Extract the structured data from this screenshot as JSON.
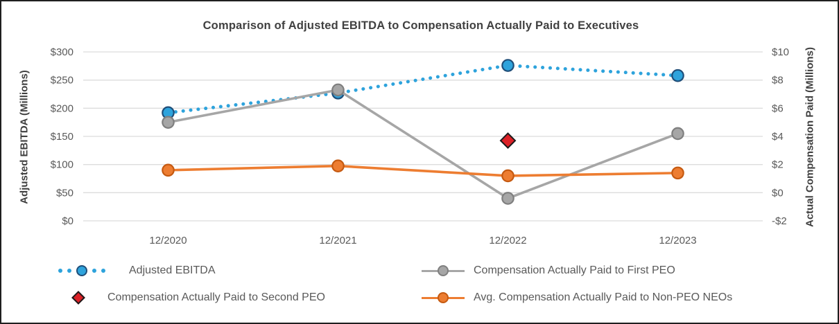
{
  "window": {
    "background": "#ffffff",
    "border_color": "#1f1f1f"
  },
  "chart_data": {
    "type": "line",
    "title": "Comparison of Adjusted EBITDA to Compensation Actually Paid to Executives",
    "categories": [
      "12/2020",
      "12/2021",
      "12/2022",
      "12/2023"
    ],
    "left_axis": {
      "title": "Adjusted EBITDA (Millions)",
      "min": 0,
      "max": 300,
      "tick_step": 50,
      "tick_labels": [
        "$0",
        "$50",
        "$100",
        "$150",
        "$200",
        "$250",
        "$300"
      ]
    },
    "right_axis": {
      "title": "Actual Compensation Paid (Millions)",
      "min": -2,
      "max": 10,
      "tick_step": 2,
      "tick_labels": [
        "-$2",
        "$0",
        "$2",
        "$4",
        "$6",
        "$8",
        "$10"
      ]
    },
    "grid": true,
    "legend_position": "bottom",
    "series": [
      {
        "name": "Adjusted EBITDA",
        "axis": "left",
        "style": "dotted-line",
        "marker": "circle",
        "color": "#2EA3DC",
        "marker_border": "#1F4E79",
        "values": [
          192,
          227,
          276,
          258
        ]
      },
      {
        "name": "Compensation Actually Paid to First PEO",
        "axis": "right",
        "style": "solid-line",
        "marker": "circle",
        "color": "#A6A6A6",
        "marker_border": "#7F7F7F",
        "values": [
          5.0,
          7.3,
          -0.4,
          4.2
        ]
      },
      {
        "name": "Compensation Actually Paid to Second PEO",
        "axis": "right",
        "style": "marker-only",
        "marker": "diamond",
        "color": "#DB2127",
        "marker_border": "#1A1A1A",
        "values": [
          null,
          null,
          3.7,
          null
        ]
      },
      {
        "name": "Avg. Compensation Actually Paid to Non-PEO NEOs",
        "axis": "right",
        "style": "solid-line",
        "marker": "circle",
        "color": "#ED7D31",
        "marker_border": "#C55A11",
        "values": [
          1.6,
          1.9,
          1.2,
          1.4
        ]
      }
    ],
    "colors": {
      "gridline": "#DCDCDC",
      "tick_text": "#595959",
      "title_text": "#404040"
    }
  }
}
